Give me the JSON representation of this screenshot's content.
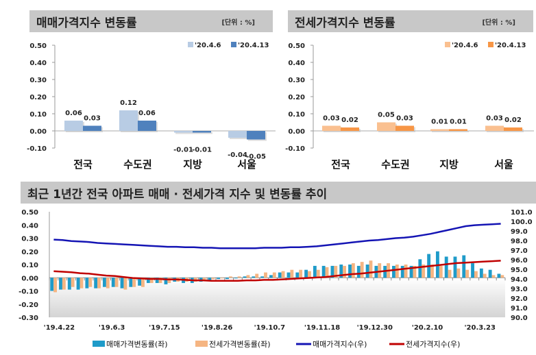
{
  "chart_data": [
    {
      "type": "bar",
      "title": "매매가격지수 변동률",
      "unit": "[단위 : %]",
      "categories": [
        "전국",
        "수도권",
        "지방",
        "서울"
      ],
      "ylim": [
        -0.1,
        0.5
      ],
      "yticks": [
        "0.50",
        "0.40",
        "0.30",
        "0.20",
        "0.10",
        "0.00",
        "-0.10"
      ],
      "legend": "top-right",
      "series": [
        {
          "name": "'20.4.6",
          "color": "#b8cce4",
          "values": [
            0.06,
            0.12,
            -0.01,
            -0.04
          ],
          "labels": [
            "0.06",
            "0.12",
            "-0.01",
            "-0.04"
          ]
        },
        {
          "name": "'20.4.13",
          "color": "#4f81bd",
          "values": [
            0.03,
            0.06,
            -0.01,
            -0.05
          ],
          "labels": [
            "0.03",
            "0.06",
            "-0.01",
            "-0.05"
          ]
        }
      ]
    },
    {
      "type": "bar",
      "title": "전세가격지수 변동률",
      "unit": "[단위 : %]",
      "categories": [
        "전국",
        "수도권",
        "지방",
        "서울"
      ],
      "ylim": [
        -0.1,
        0.5
      ],
      "yticks": [
        "0.50",
        "0.40",
        "0.30",
        "0.20",
        "0.10",
        "0.00",
        "-0.10"
      ],
      "legend": "top-right",
      "series": [
        {
          "name": "'20.4.6",
          "color": "#fac090",
          "values": [
            0.03,
            0.05,
            0.01,
            0.03
          ],
          "labels": [
            "0.03",
            "0.05",
            "0.01",
            "0.03"
          ]
        },
        {
          "name": "'20.4.13",
          "color": "#f79646",
          "values": [
            0.02,
            0.03,
            0.01,
            0.02
          ],
          "labels": [
            "0.02",
            "0.03",
            "0.01",
            "0.02"
          ]
        }
      ]
    },
    {
      "type": "bar+line",
      "title": "최근 1년간 전국 아파트 매매 · 전세가격 지수 및 변동률 추이",
      "ylim_left": [
        -0.3,
        0.5
      ],
      "ylim_right": [
        90.0,
        101.0
      ],
      "yticks_left": [
        "0.50",
        "0.40",
        "0.30",
        "0.20",
        "0.10",
        "0.00",
        "-0.10",
        "-0.20",
        "-0.30"
      ],
      "yticks_right": [
        "101.0",
        "100.0",
        "99.0",
        "98.0",
        "97.0",
        "96.0",
        "95.0",
        "94.0",
        "93.0",
        "92.0",
        "91.0",
        "90.0"
      ],
      "xtick_labels": [
        "'19.4.22",
        "'19.6.3",
        "'19.7.15",
        "'19.8.26",
        "'19.10.7",
        "'19.11.18",
        "'19.12.30",
        "'20.2.10",
        "'20.3.23"
      ],
      "legend": "bottom",
      "series": [
        {
          "name": "매매가격변동률(좌)",
          "type": "bar",
          "axis": "left",
          "color": "#1f9bc9",
          "values": [
            -0.1,
            -0.09,
            -0.09,
            -0.09,
            -0.08,
            -0.08,
            -0.07,
            -0.07,
            -0.08,
            -0.07,
            -0.06,
            -0.04,
            -0.04,
            -0.05,
            -0.03,
            -0.04,
            -0.04,
            -0.03,
            -0.02,
            -0.01,
            -0.01,
            0.0,
            0.01,
            0.01,
            0.01,
            0.02,
            0.04,
            0.04,
            0.04,
            0.06,
            0.09,
            0.09,
            0.09,
            0.1,
            0.1,
            0.09,
            0.1,
            0.09,
            0.09,
            0.09,
            0.09,
            0.09,
            0.14,
            0.18,
            0.2,
            0.16,
            0.16,
            0.17,
            0.11,
            0.07,
            0.06,
            0.03
          ]
        },
        {
          "name": "전세가격변동률(좌)",
          "type": "bar",
          "axis": "left",
          "color": "#f5b582",
          "values": [
            -0.11,
            -0.09,
            -0.07,
            -0.08,
            -0.07,
            -0.08,
            -0.08,
            -0.07,
            -0.09,
            -0.07,
            -0.07,
            -0.04,
            -0.04,
            -0.04,
            -0.03,
            -0.03,
            -0.03,
            -0.02,
            -0.01,
            0.0,
            0.01,
            0.01,
            0.02,
            0.03,
            0.04,
            0.04,
            0.05,
            0.06,
            0.06,
            0.05,
            0.06,
            0.08,
            0.09,
            0.09,
            0.11,
            0.12,
            0.13,
            0.11,
            0.11,
            0.1,
            0.1,
            0.09,
            0.1,
            0.1,
            0.09,
            0.06,
            0.07,
            0.06,
            0.05,
            0.03,
            0.02,
            0.02
          ]
        },
        {
          "name": "매매가격지수(우)",
          "type": "line",
          "axis": "right",
          "color": "#1414b4",
          "values": [
            98.1,
            98.05,
            97.95,
            97.9,
            97.85,
            97.75,
            97.7,
            97.65,
            97.6,
            97.55,
            97.5,
            97.45,
            97.4,
            97.35,
            97.35,
            97.3,
            97.3,
            97.25,
            97.25,
            97.2,
            97.2,
            97.2,
            97.2,
            97.2,
            97.25,
            97.25,
            97.25,
            97.3,
            97.3,
            97.35,
            97.4,
            97.5,
            97.6,
            97.7,
            97.8,
            97.9,
            98.0,
            98.05,
            98.15,
            98.25,
            98.3,
            98.4,
            98.55,
            98.7,
            98.9,
            99.1,
            99.3,
            99.5,
            99.6,
            99.65,
            99.7,
            99.75
          ]
        },
        {
          "name": "전세가격지수(우)",
          "type": "line",
          "axis": "right",
          "color": "#c00000",
          "values": [
            94.8,
            94.75,
            94.7,
            94.6,
            94.55,
            94.45,
            94.35,
            94.3,
            94.2,
            94.1,
            94.05,
            94.0,
            94.0,
            93.95,
            93.95,
            93.9,
            93.85,
            93.85,
            93.8,
            93.8,
            93.8,
            93.8,
            93.85,
            93.85,
            93.9,
            93.9,
            93.95,
            94.0,
            94.05,
            94.1,
            94.15,
            94.2,
            94.3,
            94.4,
            94.5,
            94.55,
            94.65,
            94.75,
            94.85,
            94.95,
            95.05,
            95.15,
            95.25,
            95.35,
            95.45,
            95.55,
            95.65,
            95.7,
            95.75,
            95.8,
            95.85,
            95.9
          ]
        }
      ]
    }
  ]
}
